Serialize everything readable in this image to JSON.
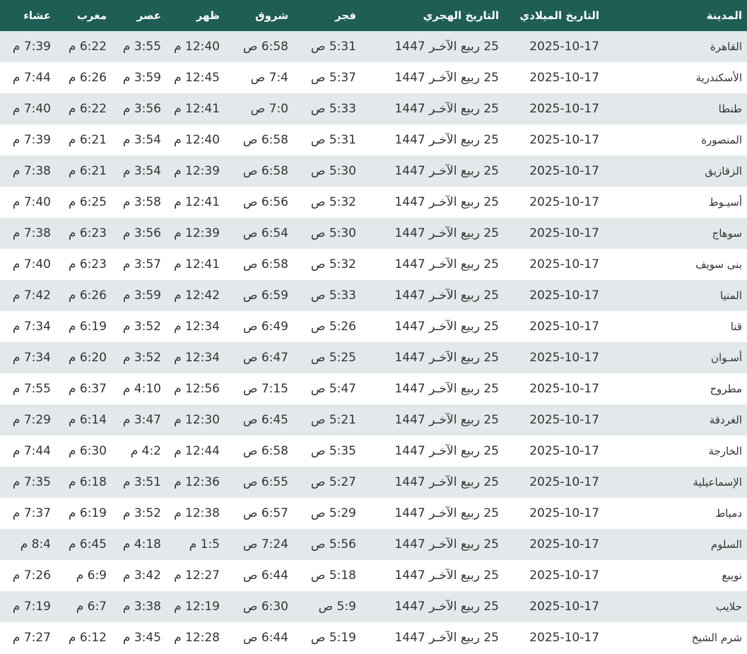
{
  "colors": {
    "header_bg": "#1e5e54",
    "row_alt_bg": "#e3e9eb"
  },
  "headers": [
    "المدينة",
    "التاريخ الميلادي",
    "التاريخ الهجري",
    "فجر",
    "شروق",
    "ظهر",
    "عصر",
    "مغرب",
    "عشاء"
  ],
  "rows": [
    [
      "القاهرة",
      "2025-10-17",
      "25 ربيع الآخـر 1447",
      "5:31 ص",
      "6:58 ص",
      "12:40 م",
      "3:55 م",
      "6:22 م",
      "7:39 م"
    ],
    [
      "الأسكندرية",
      "2025-10-17",
      "25 ربيع الآخـر 1447",
      "5:37 ص",
      "7:4 ص",
      "12:45 م",
      "3:59 م",
      "6:26 م",
      "7:44 م"
    ],
    [
      "طنطا",
      "2025-10-17",
      "25 ربيع الآخـر 1447",
      "5:33 ص",
      "7:0 ص",
      "12:41 م",
      "3:56 م",
      "6:22 م",
      "7:40 م"
    ],
    [
      "المنصورة",
      "2025-10-17",
      "25 ربيع الآخـر 1447",
      "5:31 ص",
      "6:58 ص",
      "12:40 م",
      "3:54 م",
      "6:21 م",
      "7:39 م"
    ],
    [
      "الزقازيق",
      "2025-10-17",
      "25 ربيع الآخـر 1447",
      "5:30 ص",
      "6:58 ص",
      "12:39 م",
      "3:54 م",
      "6:21 م",
      "7:38 م"
    ],
    [
      "أسيـوط",
      "2025-10-17",
      "25 ربيع الآخـر 1447",
      "5:32 ص",
      "6:56 ص",
      "12:41 م",
      "3:58 م",
      "6:25 م",
      "7:40 م"
    ],
    [
      "سوهاج",
      "2025-10-17",
      "25 ربيع الآخـر 1447",
      "5:30 ص",
      "6:54 ص",
      "12:39 م",
      "3:56 م",
      "6:23 م",
      "7:38 م"
    ],
    [
      "بنى سويف",
      "2025-10-17",
      "25 ربيع الآخـر 1447",
      "5:32 ص",
      "6:58 ص",
      "12:41 م",
      "3:57 م",
      "6:23 م",
      "7:40 م"
    ],
    [
      "المنيا",
      "2025-10-17",
      "25 ربيع الآخـر 1447",
      "5:33 ص",
      "6:59 ص",
      "12:42 م",
      "3:59 م",
      "6:26 م",
      "7:42 م"
    ],
    [
      "قنا",
      "2025-10-17",
      "25 ربيع الآخـر 1447",
      "5:26 ص",
      "6:49 ص",
      "12:34 م",
      "3:52 م",
      "6:19 م",
      "7:34 م"
    ],
    [
      "أسـوان",
      "2025-10-17",
      "25 ربيع الآخـر 1447",
      "5:25 ص",
      "6:47 ص",
      "12:34 م",
      "3:52 م",
      "6:20 م",
      "7:34 م"
    ],
    [
      "مطروح",
      "2025-10-17",
      "25 ربيع الآخـر 1447",
      "5:47 ص",
      "7:15 ص",
      "12:56 م",
      "4:10 م",
      "6:37 م",
      "7:55 م"
    ],
    [
      "الغردقة",
      "2025-10-17",
      "25 ربيع الآخـر 1447",
      "5:21 ص",
      "6:45 ص",
      "12:30 م",
      "3:47 م",
      "6:14 م",
      "7:29 م"
    ],
    [
      "الخارجة",
      "2025-10-17",
      "25 ربيع الآخـر 1447",
      "5:35 ص",
      "6:58 ص",
      "12:44 م",
      "4:2 م",
      "6:30 م",
      "7:44 م"
    ],
    [
      "الإسماعيلية",
      "2025-10-17",
      "25 ربيع الآخـر 1447",
      "5:27 ص",
      "6:55 ص",
      "12:36 م",
      "3:51 م",
      "6:18 م",
      "7:35 م"
    ],
    [
      "دمياط",
      "2025-10-17",
      "25 ربيع الآخـر 1447",
      "5:29 ص",
      "6:57 ص",
      "12:38 م",
      "3:52 م",
      "6:19 م",
      "7:37 م"
    ],
    [
      "السلوم",
      "2025-10-17",
      "25 ربيع الآخـر 1447",
      "5:56 ص",
      "7:24 ص",
      "1:5 م",
      "4:18 م",
      "6:45 م",
      "8:4 م"
    ],
    [
      "نويبع",
      "2025-10-17",
      "25 ربيع الآخـر 1447",
      "5:18 ص",
      "6:44 ص",
      "12:27 م",
      "3:42 م",
      "6:9 م",
      "7:26 م"
    ],
    [
      "حلايب",
      "2025-10-17",
      "25 ربيع الآخـر 1447",
      "5:9 ص",
      "6:30 ص",
      "12:19 م",
      "3:38 م",
      "6:7 م",
      "7:19 م"
    ],
    [
      "شرم الشيخ",
      "2025-10-17",
      "25 ربيع الآخـر 1447",
      "5:19 ص",
      "6:44 ص",
      "12:28 م",
      "3:45 م",
      "6:12 م",
      "7:27 م"
    ]
  ]
}
